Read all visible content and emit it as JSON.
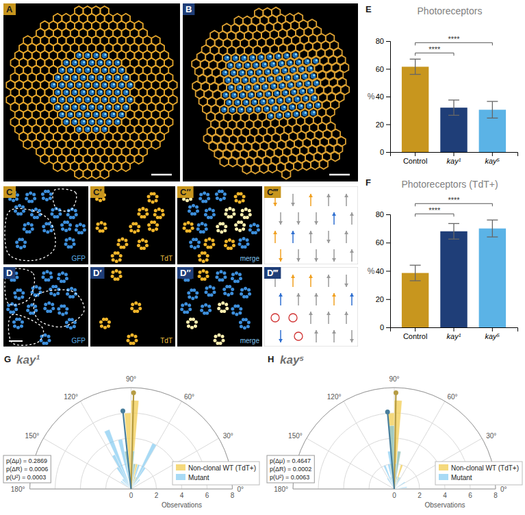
{
  "image_panels": [
    {
      "letter": "A"
    },
    {
      "letter": "B"
    },
    {
      "letter": "C",
      "channel": "GFP"
    },
    {
      "letter": "C′",
      "channel": "TdT"
    },
    {
      "letter": "C″",
      "channel": "merge"
    },
    {
      "letter": "C‴"
    },
    {
      "letter": "D",
      "channel": "GFP"
    },
    {
      "letter": "D′",
      "channel": "TdT"
    },
    {
      "letter": "D″",
      "channel": "merge"
    },
    {
      "letter": "D‴"
    }
  ],
  "chart_data": [
    {
      "type": "bar",
      "panel": "E",
      "title": "Photoreceptors",
      "y_label": "%",
      "categories": [
        "Control",
        "kay¹",
        "kay⁵"
      ],
      "values": [
        61.5,
        32,
        30.5
      ],
      "errors": [
        5.5,
        5.5,
        6
      ],
      "colors": [
        "#c8961e",
        "#1f3e78",
        "#5bb3e6"
      ],
      "ylim": [
        0,
        80
      ],
      "yticks": [
        0,
        20,
        40,
        60,
        80
      ],
      "significance": [
        {
          "from": "Control",
          "to": "kay¹",
          "label": "****"
        },
        {
          "from": "Control",
          "to": "kay⁵",
          "label": "****"
        }
      ]
    },
    {
      "type": "bar",
      "panel": "F",
      "title": "Photoreceptors (TdT+)",
      "y_label": "%",
      "categories": [
        "Control",
        "kay¹",
        "kay⁵"
      ],
      "values": [
        38.5,
        68,
        70
      ],
      "errors": [
        5.5,
        5.5,
        6
      ],
      "colors": [
        "#c8961e",
        "#1f3e78",
        "#5bb3e6"
      ],
      "ylim": [
        0,
        80
      ],
      "yticks": [
        0,
        20,
        40,
        60,
        80
      ],
      "significance": [
        {
          "from": "Control",
          "to": "kay¹",
          "label": "****"
        },
        {
          "from": "Control",
          "to": "kay⁵",
          "label": "****"
        }
      ]
    },
    {
      "type": "polar_histogram",
      "panel": "G",
      "title": "kay¹",
      "r_label": "Observations",
      "bins": [
        0,
        5,
        10,
        15,
        20,
        25,
        30,
        35,
        40,
        45,
        50,
        55,
        60,
        65,
        70,
        75,
        80,
        85,
        90,
        95,
        100,
        105,
        110,
        115,
        120,
        125,
        130,
        135,
        140,
        145,
        150,
        155,
        160,
        165,
        170,
        175,
        180
      ],
      "thetalim": [
        0,
        180
      ],
      "theta_ticks": [
        {
          "value": 0,
          "label": "0°"
        },
        {
          "value": 30,
          "label": "30°"
        },
        {
          "value": 60,
          "label": "60°"
        },
        {
          "value": 90,
          "label": "90°"
        },
        {
          "value": 120,
          "label": "120°"
        },
        {
          "value": 150,
          "label": "150°"
        },
        {
          "value": 180,
          "label": "180°"
        }
      ],
      "rlim": [
        0,
        8
      ],
      "rticks": [
        0,
        2,
        4,
        6,
        8
      ],
      "series": [
        {
          "name": "Non-clonal WT (TdT+)",
          "color": "#f2cf5b",
          "mean_angle": 88.5,
          "mean_length": 7.6,
          "values": [
            0,
            0,
            0,
            0,
            0,
            0,
            0,
            0,
            0,
            0,
            0,
            0,
            1,
            1,
            1,
            2,
            2,
            7,
            6,
            3,
            1,
            0,
            0,
            0,
            0,
            0,
            0,
            0,
            0,
            0,
            0,
            0,
            0,
            0,
            0,
            0
          ]
        },
        {
          "name": "Mutant",
          "color": "#6ec1ef",
          "mean_angle": 96,
          "mean_length": 6.2,
          "values": [
            0,
            0,
            0,
            0,
            0,
            0,
            0,
            0,
            0,
            1,
            0,
            2,
            4,
            0,
            2,
            0,
            2,
            3,
            0,
            3,
            4,
            0,
            5,
            3,
            2,
            1,
            1,
            0,
            1,
            0,
            0,
            0,
            0,
            0,
            0,
            0
          ]
        }
      ],
      "stats": [
        "p(Δμ) = 0.2869",
        "p(ΔR) = 0.0006",
        "p(U²) = 0.0003"
      ],
      "legend": "bottom-right"
    },
    {
      "type": "polar_histogram",
      "panel": "H",
      "title": "kay⁵",
      "r_label": "Observations",
      "bins": [
        0,
        5,
        10,
        15,
        20,
        25,
        30,
        35,
        40,
        45,
        50,
        55,
        60,
        65,
        70,
        75,
        80,
        85,
        90,
        95,
        100,
        105,
        110,
        115,
        120,
        125,
        130,
        135,
        140,
        145,
        150,
        155,
        160,
        165,
        170,
        175,
        180
      ],
      "thetalim": [
        0,
        180
      ],
      "theta_ticks": [
        {
          "value": 0,
          "label": "0°"
        },
        {
          "value": 30,
          "label": "30°"
        },
        {
          "value": 60,
          "label": "60°"
        },
        {
          "value": 90,
          "label": "90°"
        },
        {
          "value": 120,
          "label": "120°"
        },
        {
          "value": 150,
          "label": "150°"
        },
        {
          "value": 180,
          "label": "180°"
        }
      ],
      "rlim": [
        0,
        8
      ],
      "rticks": [
        0,
        2,
        4,
        6,
        8
      ],
      "series": [
        {
          "name": "Non-clonal WT (TdT+)",
          "color": "#f2cf5b",
          "mean_angle": 89,
          "mean_length": 7.6,
          "values": [
            0,
            0,
            0,
            0,
            0,
            0,
            0,
            0,
            0,
            0,
            0,
            0,
            0,
            1,
            2,
            1,
            3,
            7,
            6,
            2,
            1,
            0,
            0,
            0,
            0,
            0,
            0,
            0,
            0,
            0,
            0,
            0,
            0,
            0,
            0,
            0
          ]
        },
        {
          "name": "Mutant",
          "color": "#6ec1ef",
          "mean_angle": 95,
          "mean_length": 6.1,
          "values": [
            0,
            1,
            0,
            0,
            0,
            0,
            1,
            0,
            0,
            0,
            0,
            0,
            1,
            1,
            0,
            1,
            3,
            2,
            5,
            3,
            2,
            1,
            2,
            0,
            1,
            0,
            0,
            0,
            0,
            0,
            0,
            0,
            0,
            0,
            0,
            0
          ]
        }
      ],
      "stats": [
        "p(Δμ) = 0.4647",
        "p(ΔR) = 0.0002",
        "p(U²) = 0.0063"
      ],
      "legend": "bottom-right"
    }
  ]
}
